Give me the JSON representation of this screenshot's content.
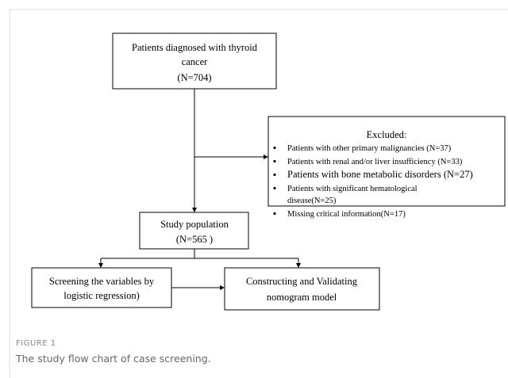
{
  "nodes": [
    {
      "lines": [
        "Patients diagnosed with thyroid",
        "cancer",
        "(N=704)"
      ]
    },
    {
      "lines": [
        "Study population",
        "(N=565 )"
      ]
    },
    {
      "lines": [
        "Screening the variables by",
        "logistic regression)"
      ]
    },
    {
      "lines": [
        "Constructing and Validating",
        "nomogram model"
      ]
    }
  ],
  "excluded": {
    "title": "Excluded:",
    "items": [
      [
        "Patients with other primary malignancies  (N=37)"
      ],
      [
        "Patients with renal and/or liver insufficiency  (N=33)"
      ],
      [
        "Patients with bone metabolic disorders (N=27)"
      ],
      [
        "Patients with significant hematological",
        "disease(N=25)"
      ],
      [
        "Missing critical information(N=17)"
      ]
    ]
  },
  "caption": {
    "label": "FIGURE 1",
    "text": "The study flow chart of case screening."
  }
}
